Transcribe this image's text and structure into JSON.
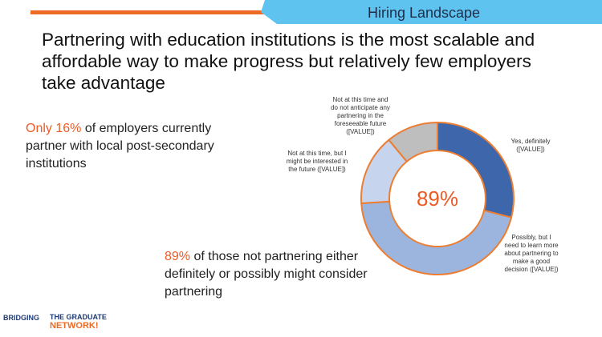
{
  "header": {
    "tag": "Hiring Landscape"
  },
  "title": "Partnering with education institutions is the most scalable and affordable way to make progress but relatively few employers take advantage",
  "callouts": [
    {
      "highlight": "Only 16%",
      "text": "of employers currently partner with local post-secondary institutions"
    },
    {
      "highlight": "89%",
      "text": "of those not partnering either definitely or possibly might consider partnering"
    }
  ],
  "chart_data": {
    "type": "donut",
    "center_label": "89%",
    "categories": [
      "Yes, definitely ([VALUE])",
      "Possibly, but I need to learn more about partnering to make a good decision ([VALUE])",
      "Not at this time, but I might be interested in the future ([VALUE])",
      "Not at this time and do not anticipate any partnering in the foreseeable future ([VALUE])"
    ],
    "values": [
      29,
      45,
      15,
      11
    ],
    "colors": [
      "#3d66ab",
      "#9bb5de",
      "#c6d4ed",
      "#bebebe"
    ],
    "outline": "#ed7d31"
  },
  "logo": {
    "left": "BRIDGING",
    "right_top": "THE GRADUATE",
    "right_bottom": "NETWORK!"
  }
}
